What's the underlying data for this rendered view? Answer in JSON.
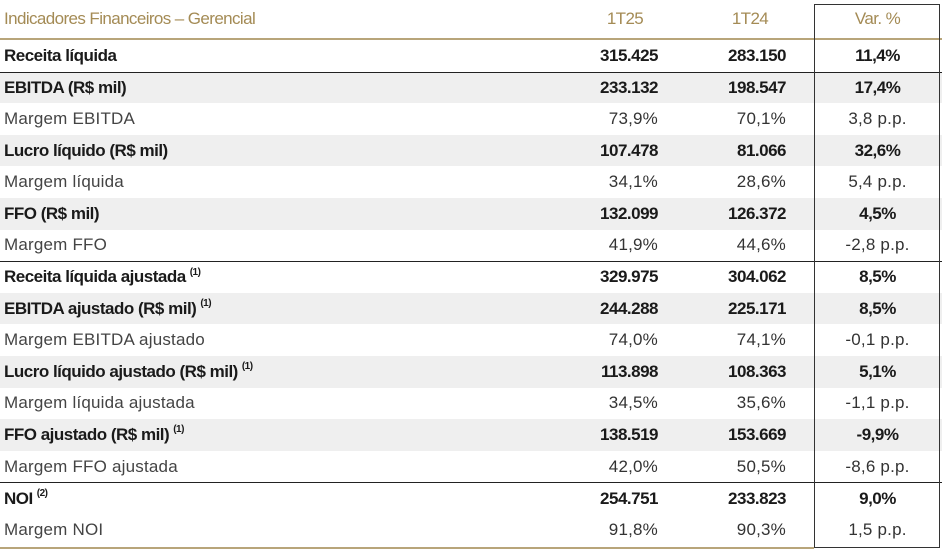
{
  "header": {
    "title": "Indicadores Financeiros – Gerencial",
    "col1": "1T25",
    "col2": "1T24",
    "col3": "Var. %"
  },
  "rows": [
    {
      "label": "Receita líquida",
      "note": "",
      "v1": "315.425",
      "v2": "283.150",
      "var": "11,4%",
      "style": "bold"
    },
    {
      "label": "EBITDA (R$ mil)",
      "note": "",
      "v1": "233.132",
      "v2": "198.547",
      "var": "17,4%",
      "style": "bold"
    },
    {
      "label": "Margem EBITDA",
      "note": "",
      "v1": "73,9%",
      "v2": "70,1%",
      "var": "3,8 p.p.",
      "style": "normal"
    },
    {
      "label": "Lucro líquido (R$ mil)",
      "note": "",
      "v1": "107.478",
      "v2": "81.066",
      "var": "32,6%",
      "style": "bold"
    },
    {
      "label": "Margem líquida",
      "note": "",
      "v1": "34,1%",
      "v2": "28,6%",
      "var": "5,4 p.p.",
      "style": "normal"
    },
    {
      "label": "FFO (R$ mil)",
      "note": "",
      "v1": "132.099",
      "v2": "126.372",
      "var": "4,5%",
      "style": "bold"
    },
    {
      "label": "Margem FFO",
      "note": "",
      "v1": "41,9%",
      "v2": "44,6%",
      "var": "-2,8 p.p.",
      "style": "normal"
    },
    {
      "label": "Receita líquida ajustada",
      "note": "(1)",
      "v1": "329.975",
      "v2": "304.062",
      "var": "8,5%",
      "style": "bold"
    },
    {
      "label": "EBITDA ajustado (R$ mil)",
      "note": "(1)",
      "v1": "244.288",
      "v2": "225.171",
      "var": "8,5%",
      "style": "bold"
    },
    {
      "label": "Margem EBITDA ajustado",
      "note": "",
      "v1": "74,0%",
      "v2": "74,1%",
      "var": "-0,1 p.p.",
      "style": "normal"
    },
    {
      "label": "Lucro líquido ajustado (R$ mil)",
      "note": "(1)",
      "v1": "113.898",
      "v2": "108.363",
      "var": "5,1%",
      "style": "bold"
    },
    {
      "label": "Margem líquida ajustada",
      "note": "",
      "v1": "34,5%",
      "v2": "35,6%",
      "var": "-1,1 p.p.",
      "style": "normal"
    },
    {
      "label": "FFO ajustado (R$ mil)",
      "note": "(1)",
      "v1": "138.519",
      "v2": "153.669",
      "var": "-9,9%",
      "style": "bold"
    },
    {
      "label": "Margem FFO ajustada",
      "note": "",
      "v1": "42,0%",
      "v2": "50,5%",
      "var": "-8,6 p.p.",
      "style": "normal"
    },
    {
      "label": "NOI",
      "note": "(2)",
      "v1": "254.751",
      "v2": "233.823",
      "var": "9,0%",
      "style": "bold"
    },
    {
      "label": "Margem NOI",
      "note": "",
      "v1": "91,8%",
      "v2": "90,3%",
      "var": "1,5 p.p.",
      "style": "normal"
    }
  ]
}
